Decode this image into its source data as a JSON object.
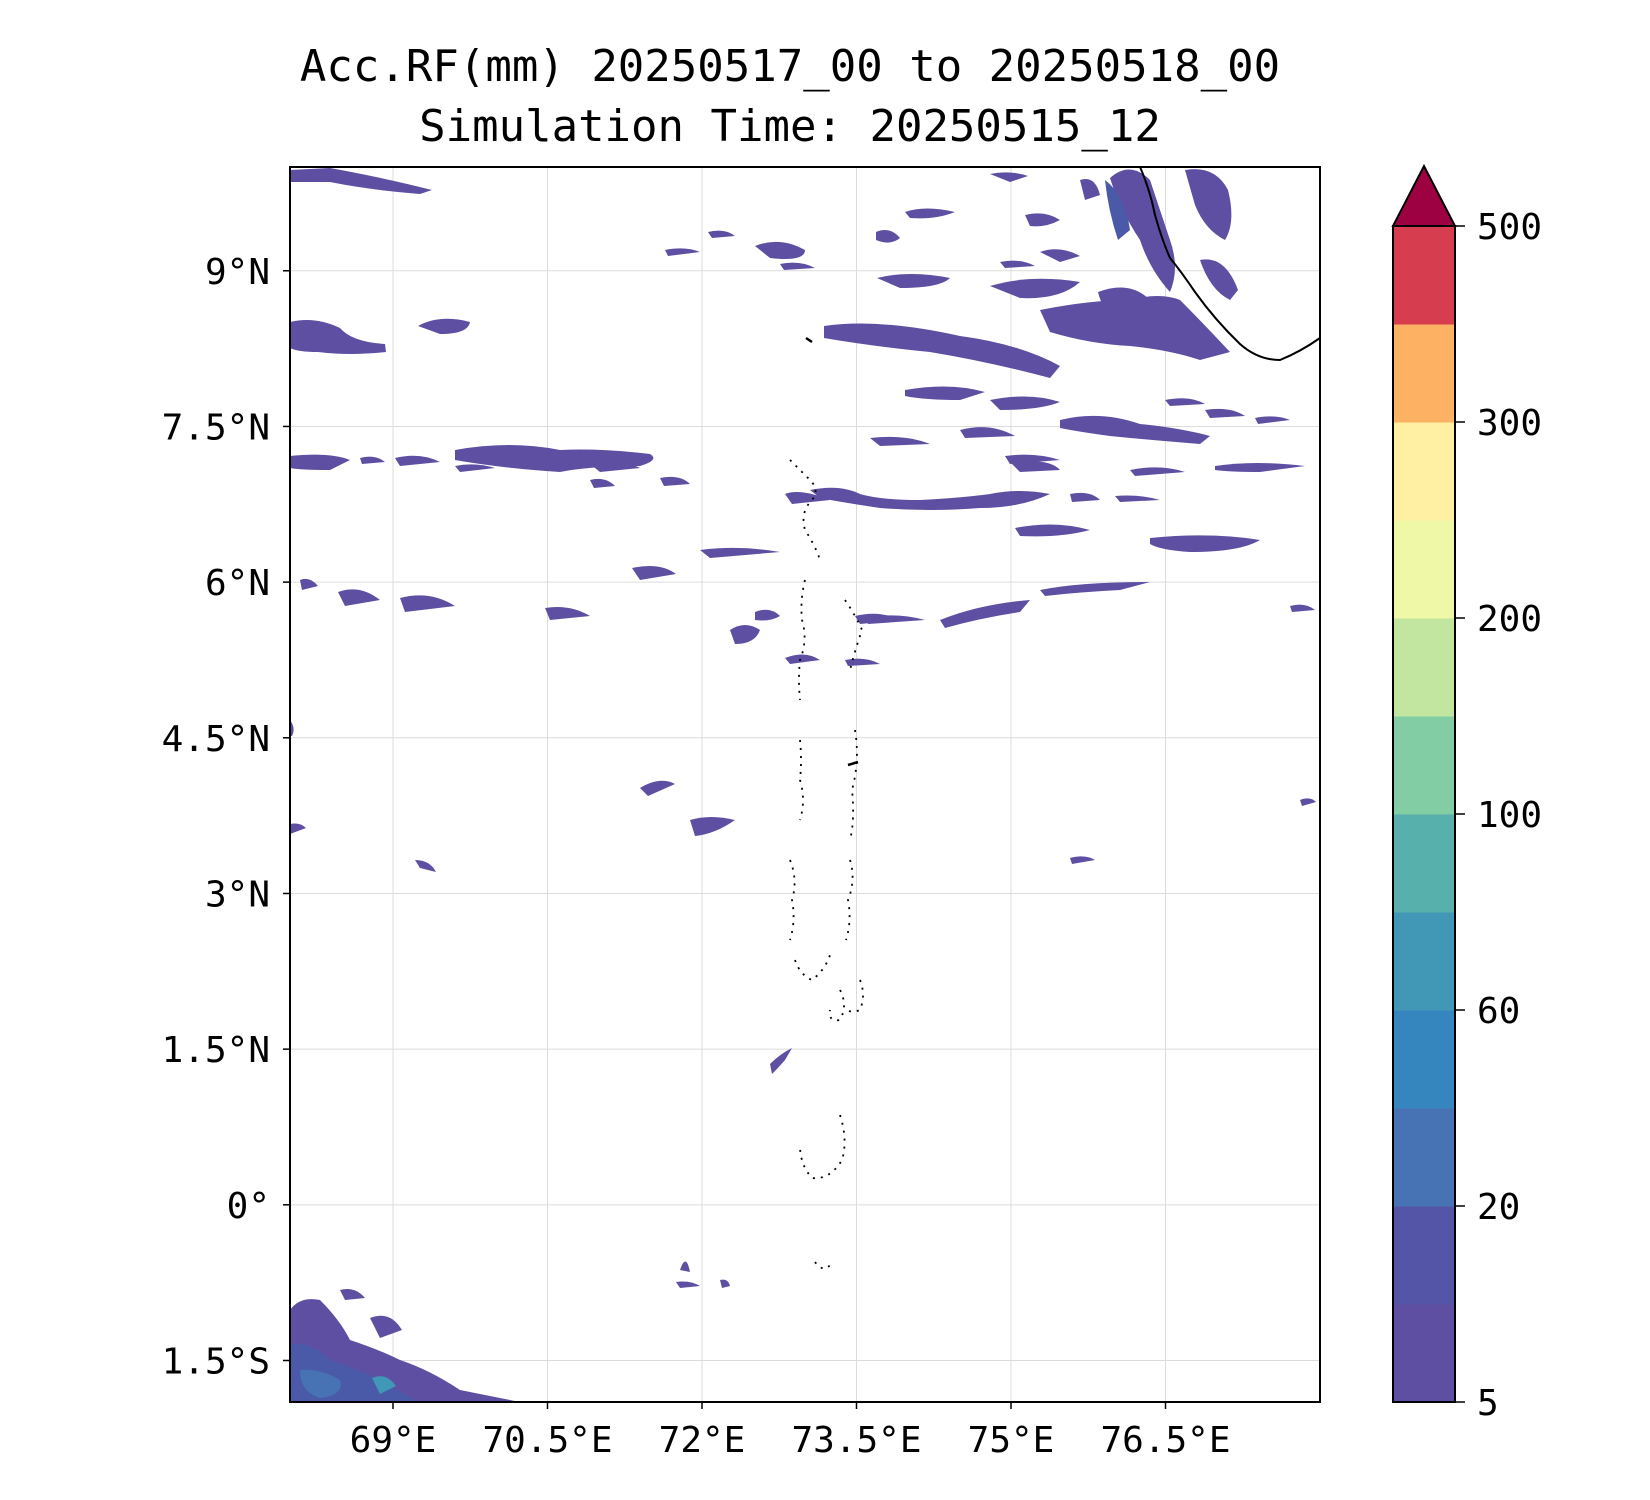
{
  "title_lines": [
    "Acc.RF(mm) 20250517_00 to 20250518_00",
    "Simulation Time: 20250515_12"
  ],
  "axes": {
    "lon_labels": [
      "69°E",
      "70.5°E",
      "72°E",
      "73.5°E",
      "75°E",
      "76.5°E"
    ],
    "lat_labels": [
      "9°N",
      "7.5°N",
      "6°N",
      "4.5°N",
      "3°N",
      "1.5°N",
      "0°",
      "1.5°S"
    ],
    "lon_values": [
      69,
      70.5,
      72,
      73.5,
      75,
      76.5
    ],
    "lat_values": [
      9,
      7.5,
      6,
      4.5,
      3,
      1.5,
      0,
      -1.5
    ],
    "lon_range": [
      68,
      78
    ],
    "lat_range": [
      -1.9,
      10
    ],
    "grid": true
  },
  "colorbar": {
    "tick_labels": [
      "5",
      "20",
      "60",
      "100",
      "200",
      "300",
      "500"
    ],
    "levels": [
      5,
      10,
      20,
      40,
      60,
      80,
      100,
      150,
      200,
      250,
      300,
      400,
      500
    ],
    "colors": [
      "#5e4fa2",
      "#5455a6",
      "#4772b4",
      "#3586bf",
      "#4198b6",
      "#57b0ab",
      "#83cda4",
      "#c2e69f",
      "#eef8a6",
      "#fff0a4",
      "#fdb163",
      "#d63e4f",
      "#9e0142"
    ],
    "extend": "max"
  },
  "rain_color": "#5e4fa2"
}
